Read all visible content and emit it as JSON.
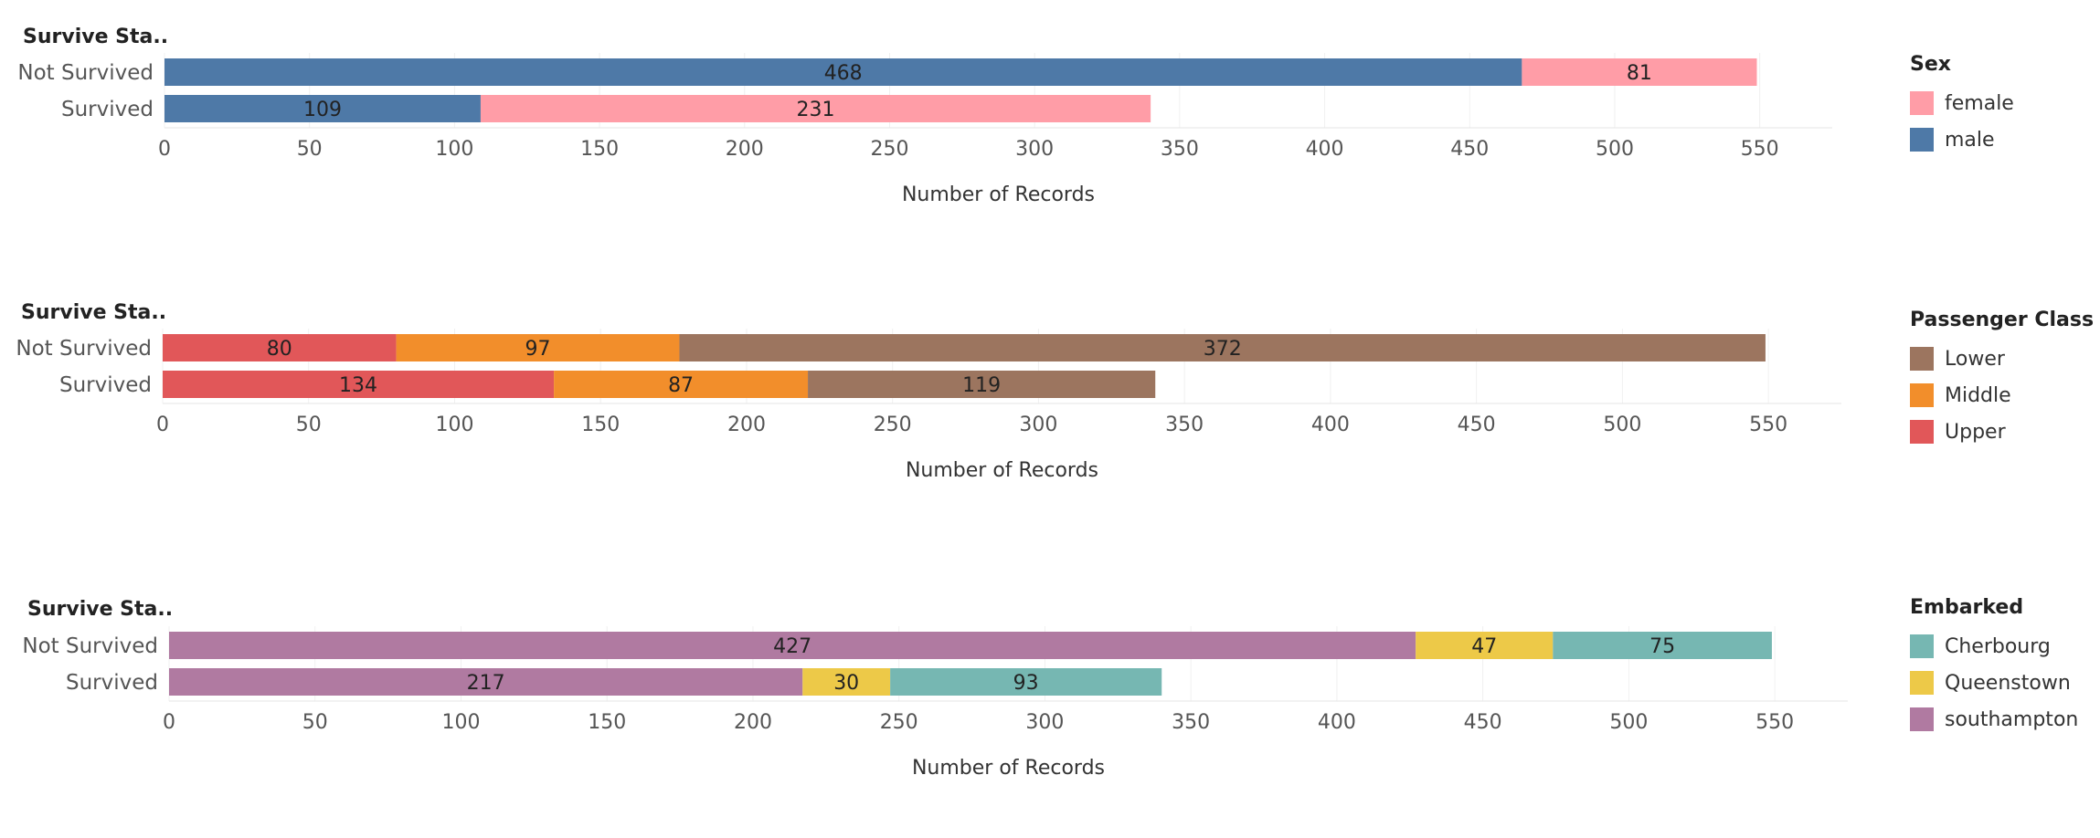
{
  "chart_data": [
    {
      "type": "bar",
      "orientation": "horizontal",
      "stacked": true,
      "dimension_title": "Survive Sta..",
      "categories": [
        "Not Survived",
        "Survived"
      ],
      "xlabel": "Number of Records",
      "xlim": [
        0,
        575
      ],
      "ticks": [
        0,
        50,
        100,
        150,
        200,
        250,
        300,
        350,
        400,
        450,
        500,
        550
      ],
      "series": [
        {
          "name": "male",
          "color": "#4e79a7",
          "values": [
            468,
            109
          ]
        },
        {
          "name": "female",
          "color": "#ff9da7",
          "values": [
            81,
            231
          ]
        }
      ],
      "legend": {
        "title": "Sex",
        "placement": "right",
        "items": [
          {
            "label": "female",
            "color": "#ff9da7"
          },
          {
            "label": "male",
            "color": "#4e79a7"
          }
        ]
      }
    },
    {
      "type": "bar",
      "orientation": "horizontal",
      "stacked": true,
      "dimension_title": "Survive Sta..",
      "categories": [
        "Not Survived",
        "Survived"
      ],
      "xlabel": "Number of Records",
      "xlim": [
        0,
        575
      ],
      "ticks": [
        0,
        50,
        100,
        150,
        200,
        250,
        300,
        350,
        400,
        450,
        500,
        550
      ],
      "series": [
        {
          "name": "Upper",
          "color": "#e15759",
          "values": [
            80,
            134
          ]
        },
        {
          "name": "Middle",
          "color": "#f28e2b",
          "values": [
            97,
            87
          ]
        },
        {
          "name": "Lower",
          "color": "#9c755f",
          "values": [
            372,
            119
          ]
        }
      ],
      "legend": {
        "title": "Passenger Class",
        "placement": "right",
        "items": [
          {
            "label": "Lower",
            "color": "#9c755f"
          },
          {
            "label": "Middle",
            "color": "#f28e2b"
          },
          {
            "label": "Upper",
            "color": "#e15759"
          }
        ]
      }
    },
    {
      "type": "bar",
      "orientation": "horizontal",
      "stacked": true,
      "dimension_title": "Survive Sta..",
      "categories": [
        "Not Survived",
        "Survived"
      ],
      "xlabel": "Number of Records",
      "xlim": [
        0,
        575
      ],
      "ticks": [
        0,
        50,
        100,
        150,
        200,
        250,
        300,
        350,
        400,
        450,
        500,
        550
      ],
      "series": [
        {
          "name": "southampton",
          "color": "#b07aa1",
          "values": [
            427,
            217
          ]
        },
        {
          "name": "Queenstown",
          "color": "#edc948",
          "values": [
            47,
            30
          ]
        },
        {
          "name": "Cherbourg",
          "color": "#76b7b2",
          "values": [
            75,
            93
          ]
        }
      ],
      "legend": {
        "title": "Embarked",
        "placement": "right",
        "items": [
          {
            "label": "Cherbourg",
            "color": "#76b7b2"
          },
          {
            "label": "Queenstown",
            "color": "#edc948"
          },
          {
            "label": "southampton",
            "color": "#b07aa1"
          }
        ]
      }
    }
  ]
}
